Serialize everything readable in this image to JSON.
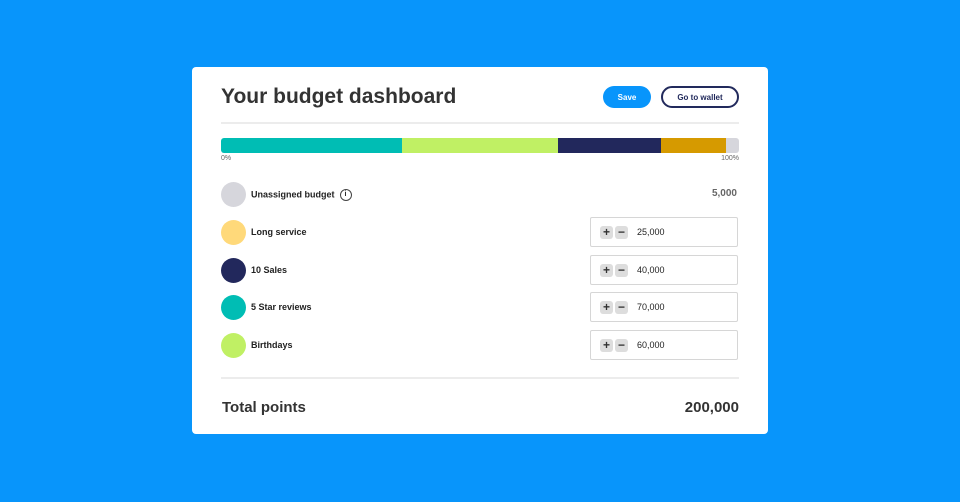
{
  "header": {
    "title": "Your budget dashboard",
    "save_label": "Save",
    "wallet_label": "Go to wallet"
  },
  "progress": {
    "start_label": "0%",
    "end_label": "100%",
    "segments": [
      {
        "name": "5 Star reviews",
        "value": 70000,
        "color": "#00bdb4"
      },
      {
        "name": "Birthdays",
        "value": 60000,
        "color": "#c0f064"
      },
      {
        "name": "10 Sales",
        "value": 40000,
        "color": "#22285c"
      },
      {
        "name": "Long service",
        "value": 25000,
        "color": "#d69a00"
      },
      {
        "name": "Unassigned budget",
        "value": 5000,
        "color": "#d6d6dc"
      }
    ]
  },
  "unassigned": {
    "label": "Unassigned budget",
    "info_icon": "i",
    "amount": "5,000",
    "color": "#d6d6dc"
  },
  "items": [
    {
      "label": "Long service",
      "value": "25,000",
      "color": "#ffd97a"
    },
    {
      "label": "10 Sales",
      "value": "40,000",
      "color": "#22285c"
    },
    {
      "label": "5 Star reviews",
      "value": "70,000",
      "color": "#00bdb4"
    },
    {
      "label": "Birthdays",
      "value": "60,000",
      "color": "#c0f064"
    }
  ],
  "stepper": {
    "plus": "+",
    "minus": "−"
  },
  "footer": {
    "label": "Total points",
    "value": "200,000"
  }
}
